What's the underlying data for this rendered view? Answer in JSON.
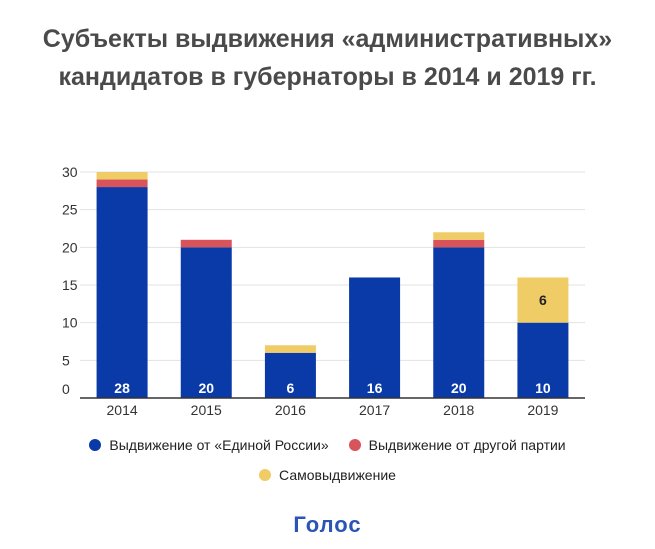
{
  "title_lines": [
    "Субъекты выдвижения «административных»",
    "кандидатов в губернаторы в 2014 и 2019 гг."
  ],
  "logo": {
    "text": "Голос",
    "color": "#2a55b4"
  },
  "colors": {
    "er": "#0a3aa8",
    "other": "#d9535b",
    "self": "#f0cc66",
    "grid": "#e3e3e3",
    "axis": "#333333"
  },
  "chart_data": {
    "type": "bar",
    "stacked": true,
    "title": "Субъекты выдвижения «административных» кандидатов в губернаторы в 2014 и 2019 гг.",
    "categories": [
      "2014",
      "2015",
      "2016",
      "2017",
      "2018",
      "2019"
    ],
    "series": [
      {
        "name": "Выдвижение от «Единой России»",
        "color": "#0a3aa8",
        "values": [
          28,
          20,
          6,
          16,
          20,
          10
        ],
        "data_labels": [
          "28",
          "20",
          "6",
          "16",
          "20",
          "10"
        ]
      },
      {
        "name": "Выдвижение от другой партии",
        "color": "#d9535b",
        "values": [
          1,
          1,
          0,
          0,
          1,
          0
        ],
        "data_labels": []
      },
      {
        "name": "Самовыдвижение",
        "color": "#f0cc66",
        "values": [
          1,
          0,
          1,
          0,
          1,
          6
        ],
        "data_labels": [
          "",
          "",
          "",
          "",
          "",
          "6"
        ]
      }
    ],
    "yticks": [
      0,
      5,
      10,
      15,
      20,
      25,
      30
    ],
    "ylim": [
      0,
      30
    ],
    "grid": true,
    "legend_position": "bottom"
  }
}
